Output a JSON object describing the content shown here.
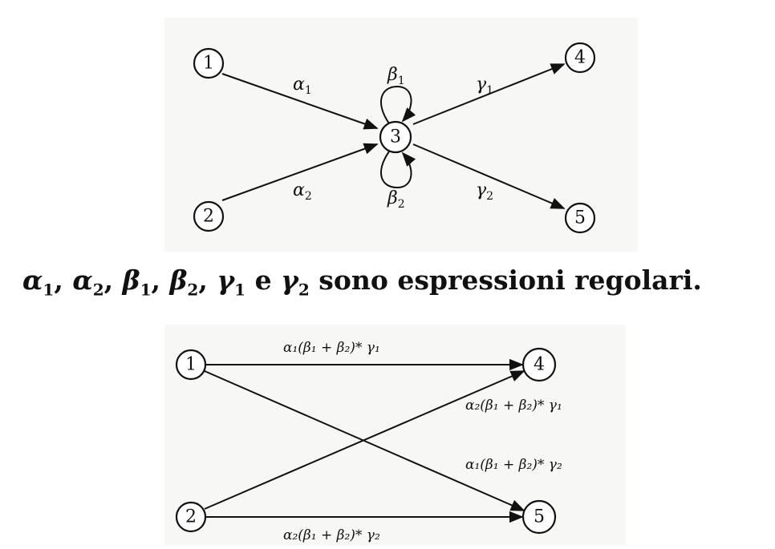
{
  "top_diagram": {
    "nodes": [
      "1",
      "2",
      "3",
      "4",
      "5"
    ],
    "edges": [
      {
        "from": "1",
        "to": "3",
        "label": "α",
        "sub": "1"
      },
      {
        "from": "2",
        "to": "3",
        "label": "α",
        "sub": "2"
      },
      {
        "from": "3",
        "to": "3",
        "label": "β",
        "sub": "1"
      },
      {
        "from": "3",
        "to": "3",
        "label": "β",
        "sub": "2"
      },
      {
        "from": "3",
        "to": "4",
        "label": "γ",
        "sub": "1"
      },
      {
        "from": "3",
        "to": "5",
        "label": "γ",
        "sub": "2"
      }
    ]
  },
  "caption": {
    "greek": [
      "α",
      "α",
      "β",
      "β",
      "γ",
      "γ"
    ],
    "subs": [
      "1",
      "2",
      "1",
      "2",
      "1",
      "2"
    ],
    "sep": ",",
    "conj": "e",
    "text": "sono espressioni regolari."
  },
  "bottom_diagram": {
    "nodes": [
      "1",
      "2",
      "4",
      "5"
    ],
    "edges": [
      {
        "from": "1",
        "to": "4",
        "label": "α₁(β₁ + β₂)* γ₁"
      },
      {
        "from": "2",
        "to": "4",
        "label": "α₂(β₁ + β₂)* γ₁"
      },
      {
        "from": "1",
        "to": "5",
        "label": "α₁(β₁ + β₂)* γ₂"
      },
      {
        "from": "2",
        "to": "5",
        "label": "α₂(β₁ + β₂)* γ₂"
      }
    ]
  }
}
